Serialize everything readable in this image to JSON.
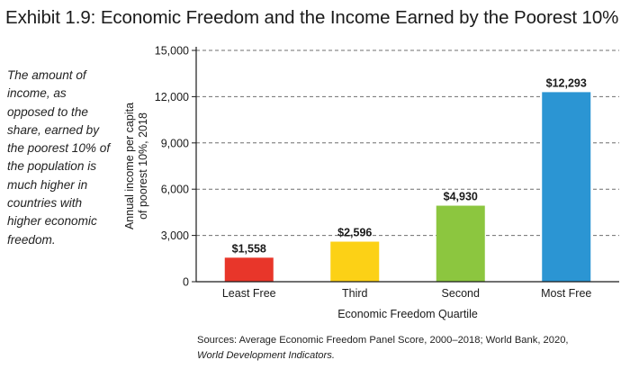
{
  "exhibit": {
    "title": "Exhibit 1.9: Economic Freedom and the Income Earned by the Poorest 10%",
    "caption": "The amount of income, as opposed to the share, earned by the poorest 10% of the population is much higher in countries with higher economic freedom.",
    "sources_text": "Sources: Average Economic Freedom Panel Score, 2000–2018; World Bank, 2020,",
    "sources_italic": "World Development Indicators."
  },
  "chart_data": {
    "type": "bar",
    "categories": [
      "Least Free",
      "Third",
      "Second",
      "Most Free"
    ],
    "values": [
      1558,
      2596,
      4930,
      12293
    ],
    "value_labels": [
      "$1,558",
      "$2,596",
      "$4,930",
      "$12,293"
    ],
    "colors": [
      "#e8362a",
      "#fcd116",
      "#8cc63f",
      "#2b95d3"
    ],
    "xlabel": "Economic Freedom Quartile",
    "ylabel_line1": "Annual income per capita",
    "ylabel_line2": "of poorest 10%, 2018",
    "ylim": [
      0,
      15000
    ],
    "yticks": [
      0,
      3000,
      6000,
      9000,
      12000,
      15000
    ],
    "ytick_labels": [
      "0",
      "3,000",
      "6,000",
      "9,000",
      "12,000",
      "15,000"
    ],
    "gridlines": "dashed horizontal"
  }
}
